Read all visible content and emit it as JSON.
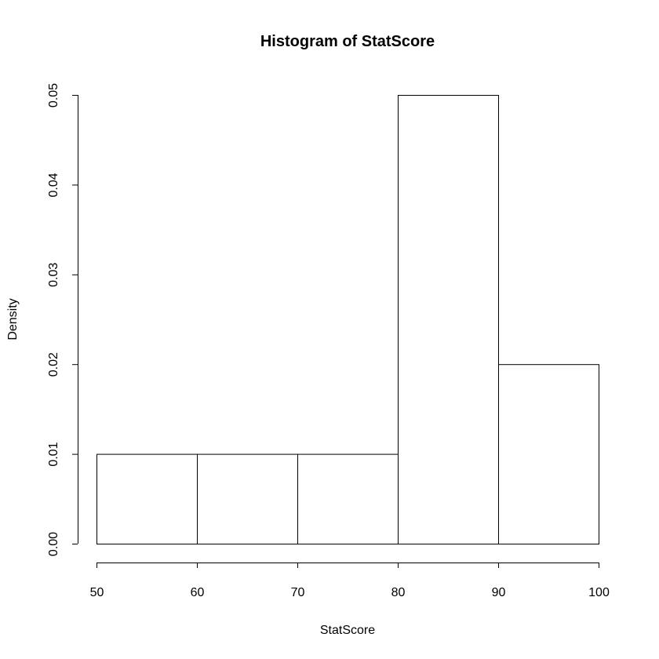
{
  "chart_data": {
    "type": "bar",
    "title": "Histogram of StatScore",
    "xlabel": "StatScore",
    "ylabel": "Density",
    "bins": [
      {
        "start": 50,
        "end": 60,
        "density": 0.01
      },
      {
        "start": 60,
        "end": 70,
        "density": 0.01
      },
      {
        "start": 70,
        "end": 80,
        "density": 0.01
      },
      {
        "start": 80,
        "end": 90,
        "density": 0.05
      },
      {
        "start": 90,
        "end": 100,
        "density": 0.02
      }
    ],
    "xlim": [
      50,
      100
    ],
    "ylim": [
      0,
      0.05
    ],
    "x_ticks": [
      50,
      60,
      70,
      80,
      90,
      100
    ],
    "x_tick_labels": [
      "50",
      "60",
      "70",
      "80",
      "90",
      "100"
    ],
    "y_ticks": [
      0,
      0.01,
      0.02,
      0.03,
      0.04,
      0.05
    ],
    "y_tick_labels": [
      "0.00",
      "0.01",
      "0.02",
      "0.03",
      "0.04",
      "0.05"
    ],
    "grid": false,
    "bar_fill": "#ffffff",
    "bar_stroke": "#000000"
  }
}
